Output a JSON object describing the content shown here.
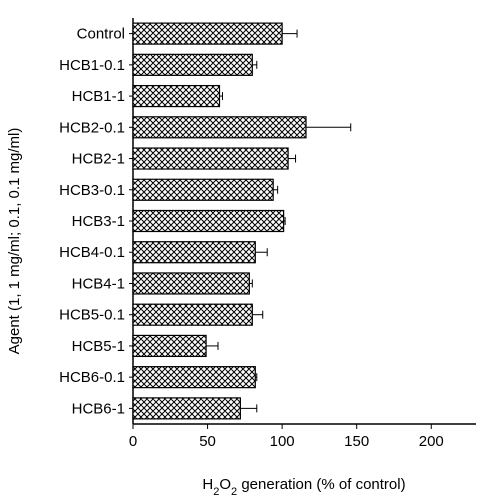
{
  "chart_data": {
    "type": "bar",
    "orientation": "horizontal",
    "categories": [
      "Control",
      "HCB1-0.1",
      "HCB1-1",
      "HCB2-0.1",
      "HCB2-1",
      "HCB3-0.1",
      "HCB3-1",
      "HCB4-0.1",
      "HCB4-1",
      "HCB5-0.1",
      "HCB5-1",
      "HCB6-0.1",
      "HCB6-1"
    ],
    "values": [
      100,
      80,
      58,
      116,
      104,
      94,
      101,
      82,
      78,
      80,
      49,
      82,
      72
    ],
    "errors": [
      10,
      3,
      2,
      30,
      5,
      3,
      1,
      8,
      2,
      7,
      8,
      1,
      11
    ],
    "xlabel_parts": [
      "H",
      "2",
      "O",
      "2",
      " generation (% of control)"
    ],
    "ylabel": "Agent (1, 1 mg/ml; 0.1, 0.1 mg/ml)",
    "xlim": [
      0,
      230
    ],
    "xticks": [
      0,
      50,
      100,
      150,
      200
    ],
    "bar_fill": "crosshatch",
    "bar_color": "#000000",
    "grid": false
  }
}
